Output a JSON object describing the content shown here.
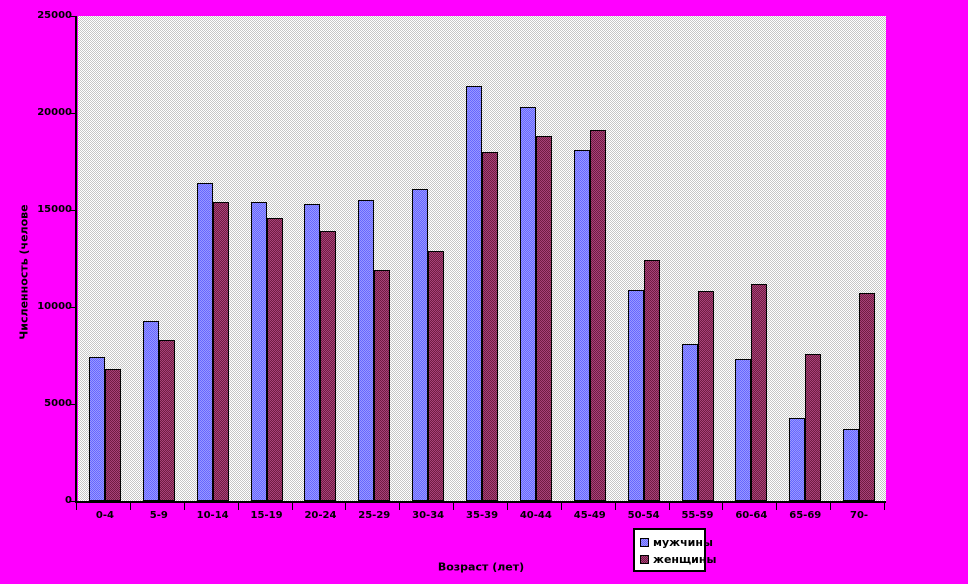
{
  "chart_data": {
    "type": "bar",
    "title": "",
    "xlabel": "Возраст (лет)",
    "ylabel": "Численность (челове",
    "categories": [
      "0-4",
      "5-9",
      "10-14",
      "15-19",
      "20-24",
      "25-29",
      "30-34",
      "35-39",
      "40-44",
      "45-49",
      "50-54",
      "55-59",
      "60-64",
      "65-69",
      "70-"
    ],
    "series": [
      {
        "name": "мужчины",
        "color": "#9999FF",
        "values": [
          7400,
          9300,
          16400,
          15400,
          15300,
          15500,
          16100,
          21400,
          20300,
          18100,
          10900,
          8100,
          7300,
          4300,
          3700
        ]
      },
      {
        "name": "женщины",
        "color": "#993366",
        "values": [
          6800,
          8300,
          15400,
          14600,
          13900,
          11900,
          12900,
          18000,
          18800,
          19100,
          12400,
          10800,
          11200,
          7600,
          10700
        ]
      }
    ],
    "ylim": [
      0,
      25000
    ],
    "yticks": [
      0,
      5000,
      10000,
      15000,
      20000,
      25000
    ],
    "ytick_labels": [
      "0",
      "5000",
      "10000",
      "15000",
      "20000",
      "25000"
    ],
    "grid": false,
    "legend_position": "below-plot-right"
  },
  "colors": {
    "background": "#FF00FF",
    "plot_fill_light": "#FFFFFF",
    "plot_fill_dark": "#C6C6C6",
    "men_fill_light": "#9999FF",
    "men_fill_dark": "#6666FF",
    "women_fill_light": "#A8427A",
    "women_fill_dark": "#701C41",
    "axis": "#000000",
    "legend_background": "#FFFFFF",
    "text": "#000000"
  }
}
